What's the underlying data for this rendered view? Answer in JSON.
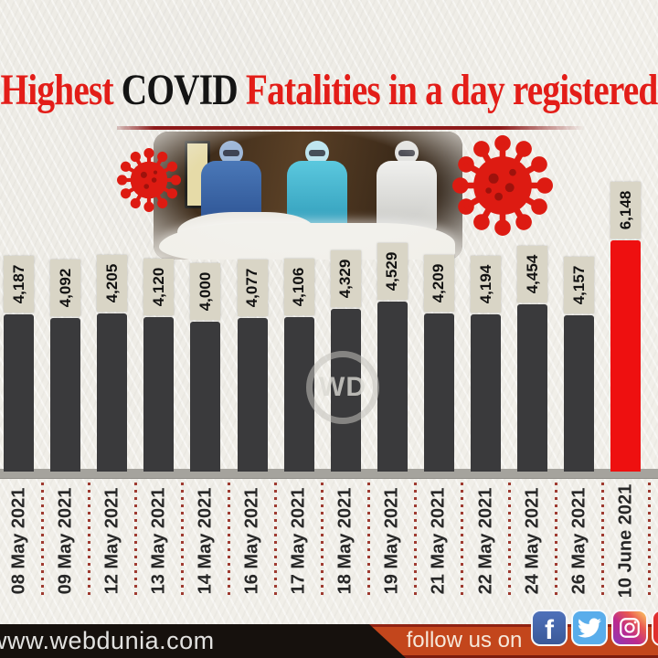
{
  "title": {
    "part1": "Highest",
    "part2": "COVID",
    "part3": "Fatalities in a day registered",
    "accent_color": "#e31d18",
    "covid_color": "#141414"
  },
  "chart_data": {
    "type": "bar",
    "title": "Highest COVID Fatalities in a day registered",
    "categories": [
      "08 May 2021",
      "09 May 2021",
      "12 May 2021",
      "13 May 2021",
      "14 May 2021",
      "16 May 2021",
      "17 May 2021",
      "18 May 2021",
      "19 May 2021",
      "21 May 2021",
      "22 May 2021",
      "24 May 2021",
      "26 May 2021",
      "10 June 2021"
    ],
    "values": [
      4187,
      4092,
      4205,
      4120,
      4000,
      4077,
      4106,
      4329,
      4529,
      4209,
      4194,
      4454,
      4157,
      6148
    ],
    "value_labels": [
      "4,187",
      "4,092",
      "4,205",
      "4,120",
      "4,000",
      "4,077",
      "4,106",
      "4,329",
      "4,529",
      "4,209",
      "4,194",
      "4,454",
      "4,157",
      "6,148"
    ],
    "highlight_index": 13,
    "bar_color": "#3a3a3c",
    "highlight_color": "#ee1010",
    "label_box_color": "#d9d5c6",
    "xlabel": "",
    "ylabel": "",
    "ylim": [
      0,
      6500
    ],
    "grid": false,
    "legend": false
  },
  "watermark": {
    "text": "WD"
  },
  "footer": {
    "site": "www.webdunia.com",
    "follow": "follow us on",
    "black_bg": "#16110d",
    "orange_bg": "#c3461c",
    "social_icons": [
      "facebook-icon",
      "twitter-icon",
      "instagram-icon",
      "youtube-icon"
    ]
  },
  "decor": {
    "virus_color": "#dd1b12",
    "virus_dot_color": "#9e120c",
    "icons": [
      "coronavirus-icon-left",
      "coronavirus-icon-right"
    ]
  }
}
